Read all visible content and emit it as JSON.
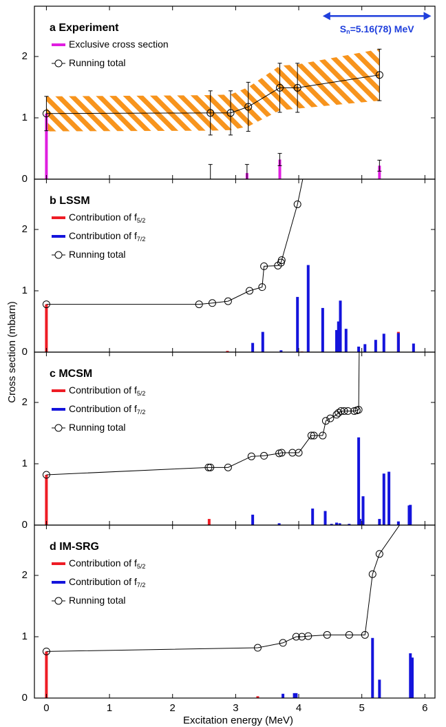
{
  "chart_data": [
    {
      "type": "bar_line",
      "title": "a Experiment",
      "ylim": [
        0,
        2.82
      ],
      "yticks": [
        0,
        1,
        2
      ],
      "annotation": {
        "text": "S",
        "sub": "n",
        "rest": "=5.16(78) MeV",
        "color": "#1f3fdc",
        "x": [
          4.38,
          6.1
        ],
        "y": 2.66
      },
      "series": [
        {
          "type": "band",
          "color": "#f7941d",
          "x": [
            0,
            2.6,
            2.92,
            3.2,
            3.7,
            3.98,
            5.28
          ],
          "lower": [
            0.78,
            0.79,
            0.8,
            0.86,
            1.12,
            1.15,
            1.28
          ],
          "upper": [
            1.35,
            1.37,
            1.38,
            1.5,
            1.85,
            1.87,
            2.12
          ]
        },
        {
          "type": "bar",
          "name": "Exclusive cross section",
          "color": "#e01ee0",
          "x": [
            0,
            2.6,
            3.18,
            3.7,
            5.28
          ],
          "values": [
            1.07,
            0,
            0.1,
            0.32,
            0.22
          ],
          "errors": [
            null,
            0.24,
            0.14,
            0.1,
            0.09
          ]
        },
        {
          "type": "line",
          "name": "Running total",
          "color": "#000000",
          "x": [
            0,
            2.6,
            2.92,
            3.2,
            3.7,
            3.98,
            5.28
          ],
          "values": [
            1.07,
            1.08,
            1.08,
            1.18,
            1.49,
            1.49,
            1.7
          ],
          "errors": [
            0.28,
            0.36,
            0.36,
            0.4,
            0.4,
            0.4,
            0.42
          ]
        }
      ]
    },
    {
      "type": "bar_line",
      "title": "b LSSM",
      "ylim": [
        0,
        2.82
      ],
      "yticks": [
        0,
        1,
        2
      ],
      "ylabel": "Cross section (mbarn)",
      "series": [
        {
          "type": "bar",
          "name": "Contribution of f",
          "name_sub": "5/2",
          "color": "#ee1c25",
          "x": [
            0,
            2.87,
            4.05,
            5.58
          ],
          "values": [
            0.78,
            0.02,
            0.01,
            0.33
          ]
        },
        {
          "type": "bar",
          "name": "Contribution of f",
          "name_sub": "7/2",
          "color": "#1414dc",
          "x": [
            3.27,
            3.43,
            3.72,
            3.98,
            4.15,
            4.38,
            4.6,
            4.63,
            4.66,
            4.75,
            4.95,
            5.05,
            5.22,
            5.35,
            5.58,
            5.82
          ],
          "values": [
            0.15,
            0.33,
            0.03,
            0.9,
            1.42,
            0.72,
            0.36,
            0.5,
            0.84,
            0.38,
            0.09,
            0.13,
            0.2,
            0.3,
            0.31,
            0.14
          ]
        },
        {
          "type": "line",
          "name": "Running total",
          "color": "#000000",
          "x": [
            0,
            2.42,
            2.63,
            2.88,
            3.22,
            3.42,
            3.45,
            3.67,
            3.72,
            3.73,
            3.98,
            4.1
          ],
          "values": [
            0.78,
            0.78,
            0.8,
            0.83,
            1.0,
            1.06,
            1.4,
            1.41,
            1.46,
            1.5,
            2.41,
            3.0
          ]
        }
      ]
    },
    {
      "type": "bar_line",
      "title": "c MCSM",
      "ylim": [
        0,
        2.82
      ],
      "yticks": [
        0,
        1,
        2
      ],
      "series": [
        {
          "type": "bar",
          "name": "Contribution of f",
          "name_sub": "5/2",
          "color": "#ee1c25",
          "x": [
            0,
            2.58
          ],
          "values": [
            0.82,
            0.1
          ]
        },
        {
          "type": "bar",
          "name": "Contribution of f",
          "name_sub": "7/2",
          "color": "#1414dc",
          "x": [
            3.27,
            3.69,
            4.22,
            4.42,
            4.52,
            4.6,
            4.65,
            4.8,
            4.95,
            4.97,
            5.02,
            5.28,
            5.35,
            5.43,
            5.58,
            5.75,
            5.77
          ],
          "values": [
            0.17,
            0.03,
            0.27,
            0.23,
            0.02,
            0.04,
            0.03,
            0.02,
            1.43,
            0.1,
            0.47,
            0.1,
            0.84,
            0.87,
            0.06,
            0.32,
            0.33
          ]
        },
        {
          "type": "line",
          "name": "Running total",
          "color": "#000000",
          "x": [
            0,
            2.57,
            2.6,
            2.88,
            3.25,
            3.45,
            3.69,
            3.73,
            3.9,
            4.0,
            4.2,
            4.24,
            4.38,
            4.43,
            4.5,
            4.6,
            4.63,
            4.67,
            4.72,
            4.78,
            4.88,
            4.92,
            4.95,
            4.96
          ],
          "values": [
            0.82,
            0.94,
            0.94,
            0.94,
            1.12,
            1.13,
            1.17,
            1.18,
            1.18,
            1.18,
            1.46,
            1.46,
            1.46,
            1.7,
            1.74,
            1.8,
            1.83,
            1.86,
            1.86,
            1.86,
            1.86,
            1.87,
            1.88,
            3.0
          ]
        }
      ]
    },
    {
      "type": "bar_line",
      "title": "d IM-SRG",
      "ylim": [
        0,
        2.82
      ],
      "yticks": [
        0,
        1,
        2
      ],
      "xlim": [
        -0.19,
        6.16
      ],
      "xticks": [
        0,
        1,
        2,
        3,
        4,
        5,
        6
      ],
      "xlabel": "Excitation energy (MeV)",
      "series": [
        {
          "type": "bar",
          "name": "Contribution of f",
          "name_sub": "5/2",
          "color": "#ee1c25",
          "x": [
            0,
            3.35
          ],
          "values": [
            0.76,
            0.03
          ]
        },
        {
          "type": "bar",
          "name": "Contribution of f",
          "name_sub": "7/2",
          "color": "#1414dc",
          "x": [
            3.75,
            3.93,
            3.96,
            5.17,
            5.28,
            5.77,
            5.8
          ],
          "values": [
            0.07,
            0.08,
            0.08,
            0.98,
            0.3,
            0.73,
            0.66
          ]
        },
        {
          "type": "line",
          "name": "Running total",
          "color": "#000000",
          "x": [
            0,
            3.35,
            3.75,
            3.96,
            4.05,
            4.15,
            4.45,
            4.8,
            5.05,
            5.17,
            5.28,
            5.72
          ],
          "values": [
            0.76,
            0.82,
            0.9,
            1.0,
            1.0,
            1.01,
            1.03,
            1.03,
            1.03,
            2.02,
            2.35,
            3.0
          ]
        }
      ]
    }
  ]
}
